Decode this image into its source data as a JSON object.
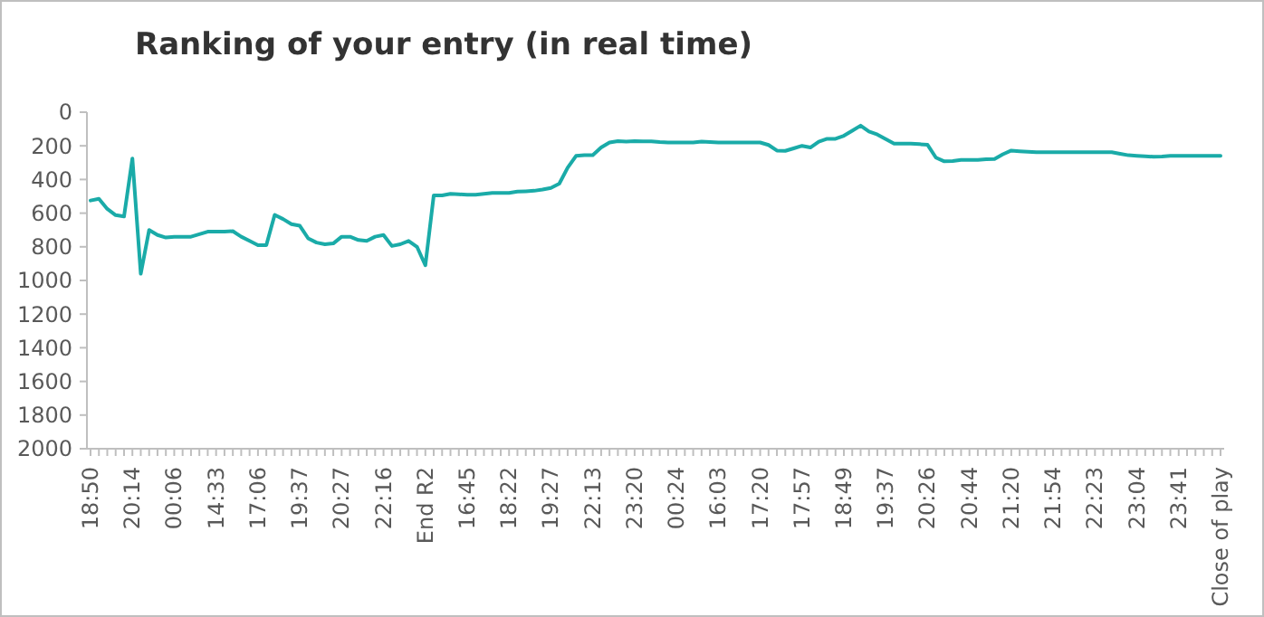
{
  "chart_data": {
    "type": "line",
    "title": "Ranking of your entry (in real time)",
    "categories": [
      "18:50",
      null,
      null,
      null,
      null,
      "20:14",
      null,
      null,
      null,
      null,
      "00:06",
      null,
      null,
      null,
      null,
      "14:33",
      null,
      null,
      null,
      null,
      "17:06",
      null,
      null,
      null,
      null,
      "19:37",
      null,
      null,
      null,
      null,
      "20:27",
      null,
      null,
      null,
      null,
      "22:16",
      null,
      null,
      null,
      null,
      "End R2",
      null,
      null,
      null,
      null,
      "16:45",
      null,
      null,
      null,
      null,
      "18:22",
      null,
      null,
      null,
      null,
      "19:27",
      null,
      null,
      null,
      null,
      "22:13",
      null,
      null,
      null,
      null,
      "23:20",
      null,
      null,
      null,
      null,
      "00:24",
      null,
      null,
      null,
      null,
      "16:03",
      null,
      null,
      null,
      null,
      "17:20",
      null,
      null,
      null,
      null,
      "17:57",
      null,
      null,
      null,
      null,
      "18:49",
      null,
      null,
      null,
      null,
      "19:37",
      null,
      null,
      null,
      null,
      "20:26",
      null,
      null,
      null,
      null,
      "20:44",
      null,
      null,
      null,
      null,
      "21:20",
      null,
      null,
      null,
      null,
      "21:54",
      null,
      null,
      null,
      null,
      "22:23",
      null,
      null,
      null,
      null,
      "23:04",
      null,
      null,
      null,
      null,
      "23:41",
      null,
      null,
      null,
      null,
      "Close of play"
    ],
    "series": [
      {
        "color": "#1aaba8",
        "values": [
          525,
          515,
          575,
          612,
          620,
          275,
          960,
          700,
          730,
          745,
          740,
          740,
          740,
          725,
          710,
          710,
          710,
          707,
          740,
          765,
          790,
          790,
          610,
          635,
          665,
          675,
          750,
          775,
          785,
          780,
          740,
          740,
          760,
          765,
          740,
          730,
          795,
          785,
          765,
          800,
          910,
          495,
          495,
          485,
          488,
          490,
          490,
          485,
          480,
          480,
          480,
          472,
          470,
          467,
          460,
          450,
          425,
          330,
          260,
          255,
          255,
          210,
          180,
          172,
          175,
          172,
          173,
          173,
          178,
          180,
          180,
          180,
          180,
          175,
          178,
          180,
          180,
          180,
          180,
          180,
          180,
          195,
          228,
          230,
          215,
          200,
          210,
          175,
          158,
          158,
          140,
          110,
          80,
          115,
          133,
          160,
          187,
          187,
          187,
          190,
          194,
          270,
          292,
          290,
          284,
          284,
          284,
          280,
          278,
          250,
          228,
          232,
          235,
          238,
          238,
          238,
          238,
          238,
          238,
          238,
          238,
          238,
          238,
          247,
          256,
          259,
          262,
          265,
          264,
          260,
          259,
          259,
          259,
          259,
          259,
          259
        ]
      }
    ],
    "ylim": [
      2000,
      0
    ],
    "yticks": [
      0,
      200,
      400,
      600,
      800,
      1000,
      1200,
      1400,
      1600,
      1800,
      2000
    ],
    "grid": false,
    "marker": "none",
    "line_style": "solid"
  }
}
